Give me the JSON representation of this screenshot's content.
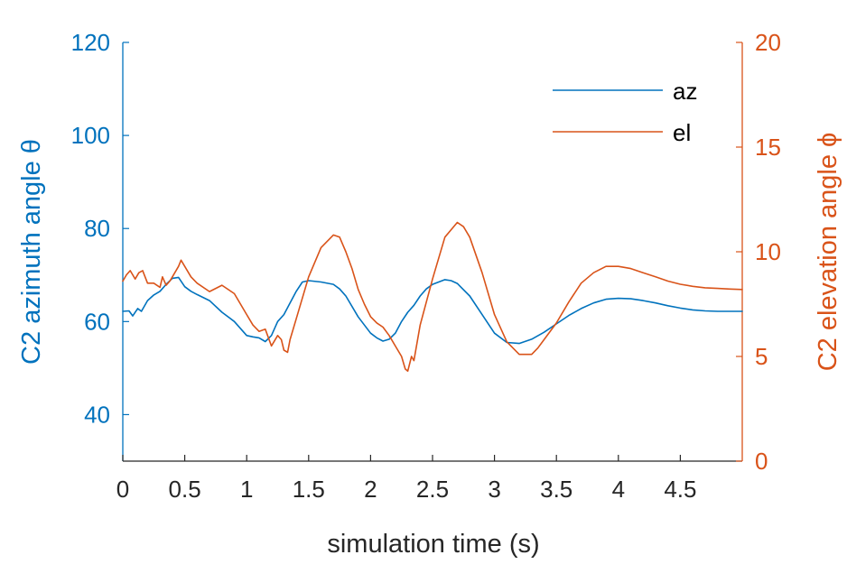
{
  "chart_data": {
    "type": "line",
    "xlabel": "simulation time (s)",
    "ylabel_left": "C2 azimuth angle θ",
    "ylabel_right": "C2 elevation angle ϕ",
    "xlim": [
      0,
      5
    ],
    "ylim_left": [
      30,
      120
    ],
    "ylim_right": [
      0,
      20
    ],
    "x_ticks": [
      0,
      0.5,
      1,
      1.5,
      2,
      2.5,
      3,
      3.5,
      4,
      4.5
    ],
    "x_tick_labels": [
      "0",
      "0.5",
      "1",
      "1.5",
      "2",
      "2.5",
      "3",
      "3.5",
      "4",
      "4.5"
    ],
    "y_left_ticks": [
      40,
      60,
      80,
      100,
      120
    ],
    "y_left_tick_labels": [
      "40",
      "60",
      "80",
      "100",
      "120"
    ],
    "y_right_ticks": [
      0,
      5,
      10,
      15,
      20
    ],
    "y_right_tick_labels": [
      "0",
      "5",
      "10",
      "15",
      "20"
    ],
    "grid": false,
    "legend_position": "top-right",
    "colors": {
      "az": "#0072BD",
      "el": "#D95319",
      "axis": "#262626"
    },
    "series": [
      {
        "name": "az",
        "axis": "left",
        "x": [
          0,
          0.05,
          0.08,
          0.12,
          0.15,
          0.2,
          0.25,
          0.3,
          0.35,
          0.4,
          0.45,
          0.5,
          0.55,
          0.6,
          0.7,
          0.8,
          0.9,
          1.0,
          1.05,
          1.1,
          1.15,
          1.2,
          1.25,
          1.3,
          1.35,
          1.4,
          1.45,
          1.5,
          1.6,
          1.7,
          1.75,
          1.8,
          1.9,
          2.0,
          2.05,
          2.1,
          2.15,
          2.2,
          2.25,
          2.3,
          2.35,
          2.4,
          2.45,
          2.5,
          2.6,
          2.65,
          2.7,
          2.8,
          2.9,
          3.0,
          3.1,
          3.2,
          3.3,
          3.4,
          3.5,
          3.6,
          3.7,
          3.8,
          3.9,
          4.0,
          4.1,
          4.2,
          4.3,
          4.4,
          4.5,
          4.6,
          4.7,
          4.8,
          4.9,
          5.0
        ],
        "values": [
          62.2,
          62.3,
          61.2,
          62.8,
          62.2,
          64.5,
          65.7,
          66.5,
          68.0,
          69.3,
          69.5,
          67.5,
          66.5,
          65.8,
          64.5,
          62.0,
          60.0,
          57.0,
          56.7,
          56.5,
          55.7,
          57.0,
          60.0,
          61.5,
          64.0,
          66.5,
          68.5,
          68.8,
          68.5,
          68.0,
          67.0,
          65.5,
          61.0,
          57.5,
          56.5,
          55.8,
          56.2,
          57.5,
          60.0,
          62.0,
          63.5,
          65.5,
          67.0,
          68.0,
          69.0,
          68.8,
          68.2,
          65.5,
          61.5,
          57.5,
          55.5,
          55.3,
          56.2,
          57.7,
          59.5,
          61.3,
          62.8,
          64.0,
          64.8,
          65.0,
          64.9,
          64.5,
          64.0,
          63.4,
          62.9,
          62.5,
          62.3,
          62.2,
          62.2,
          62.2
        ]
      },
      {
        "name": "el",
        "axis": "right",
        "x": [
          0,
          0.03,
          0.06,
          0.1,
          0.13,
          0.16,
          0.2,
          0.25,
          0.3,
          0.32,
          0.35,
          0.38,
          0.4,
          0.45,
          0.47,
          0.5,
          0.55,
          0.6,
          0.7,
          0.8,
          0.9,
          1.0,
          1.05,
          1.1,
          1.15,
          1.2,
          1.25,
          1.28,
          1.3,
          1.33,
          1.35,
          1.4,
          1.5,
          1.6,
          1.7,
          1.75,
          1.8,
          1.85,
          1.9,
          1.95,
          2.0,
          2.05,
          2.1,
          2.15,
          2.2,
          2.25,
          2.28,
          2.3,
          2.33,
          2.35,
          2.4,
          2.5,
          2.6,
          2.7,
          2.75,
          2.8,
          2.9,
          3.0,
          3.1,
          3.2,
          3.3,
          3.35,
          3.4,
          3.5,
          3.6,
          3.7,
          3.8,
          3.9,
          4.0,
          4.1,
          4.2,
          4.3,
          4.4,
          4.5,
          4.6,
          4.7,
          4.8,
          4.9,
          5.0
        ],
        "values": [
          8.6,
          8.9,
          9.1,
          8.7,
          9.0,
          9.1,
          8.5,
          8.5,
          8.3,
          8.8,
          8.4,
          8.6,
          8.8,
          9.3,
          9.6,
          9.3,
          8.8,
          8.5,
          8.1,
          8.4,
          8.0,
          7.0,
          6.5,
          6.2,
          6.3,
          5.5,
          6.0,
          5.8,
          5.3,
          5.2,
          5.8,
          6.8,
          8.8,
          10.2,
          10.8,
          10.7,
          10.0,
          9.2,
          8.2,
          7.5,
          6.9,
          6.6,
          6.4,
          6.0,
          5.5,
          5.0,
          4.4,
          4.3,
          5.0,
          4.8,
          6.5,
          8.7,
          10.7,
          11.4,
          11.2,
          10.7,
          9.0,
          7.0,
          5.7,
          5.1,
          5.1,
          5.4,
          5.8,
          6.6,
          7.6,
          8.5,
          9.0,
          9.3,
          9.3,
          9.2,
          9.0,
          8.8,
          8.6,
          8.45,
          8.35,
          8.28,
          8.25,
          8.22,
          8.2
        ]
      }
    ]
  }
}
